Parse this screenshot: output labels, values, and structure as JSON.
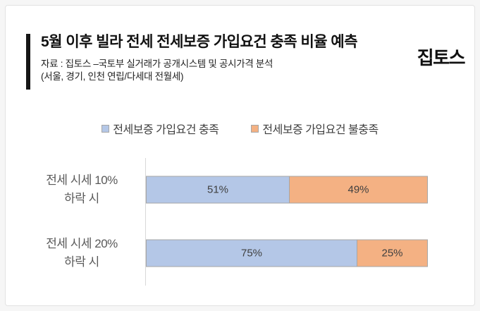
{
  "header": {
    "title": "5월 이후 빌라 전세 전세보증 가입요건 충족 비율 예측",
    "source_line1": "자료 : 집토스 –국토부 실거래가 공개시스템 및 공시가격 분석",
    "source_line2": "(서울, 경기, 인천 연립/다세대 전월세)",
    "logo": "집토스"
  },
  "colors": {
    "met": "#b4c7e7",
    "not_met": "#f4b183",
    "segment_border": "#a6a6a6",
    "axis_line": "#d9d9d9",
    "accent_bar": "#161616",
    "value_label": "#404040",
    "category_label": "#595959"
  },
  "chart_data": {
    "type": "bar",
    "orientation": "horizontal",
    "stacked": true,
    "grid": false,
    "legend_position": "top",
    "xlim": [
      0,
      100
    ],
    "value_suffix": "%",
    "categories": [
      [
        "전세 시세 10%",
        "하락 시"
      ],
      [
        "전세 시세 20%",
        "하락 시"
      ]
    ],
    "series": [
      {
        "name": "전세보증 가입요건 충족",
        "color": "#b4c7e7",
        "values": [
          51,
          75
        ]
      },
      {
        "name": "전세보증 가입요건 불충족",
        "color": "#f4b183",
        "values": [
          49,
          25
        ]
      }
    ]
  }
}
